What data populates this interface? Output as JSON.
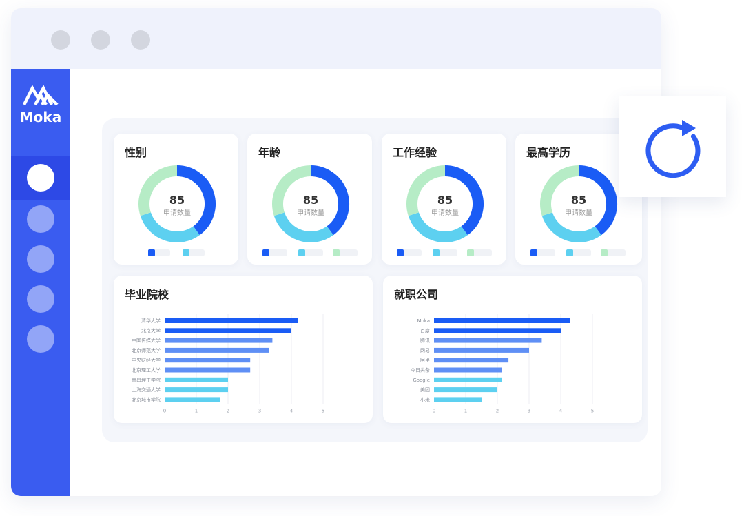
{
  "app": {
    "brand": "Moka"
  },
  "cards": [
    {
      "title": "性别",
      "value": "85",
      "label": "申请数量"
    },
    {
      "title": "年龄",
      "value": "85",
      "label": "申请数量"
    },
    {
      "title": "工作经验",
      "value": "85",
      "label": "申请数量"
    },
    {
      "title": "最高学历",
      "value": "85",
      "label": "申请数量"
    }
  ],
  "colors": {
    "accent": "#3a5cf0",
    "sidebar_active": "#2d49e6",
    "titlebar": "#eff2fc",
    "blue": "#1a5cf5",
    "mid_blue": "#5f8ff5",
    "cyan": "#5dd0f0",
    "green": "#b6ecc6"
  },
  "chart_data": [
    {
      "type": "pie",
      "subtype": "donut",
      "title": "性别",
      "values": [
        40,
        30,
        30
      ],
      "center_value": "85",
      "center_label": "申请数量"
    },
    {
      "type": "pie",
      "subtype": "donut",
      "title": "年龄",
      "values": [
        40,
        30,
        30
      ],
      "center_value": "85",
      "center_label": "申请数量"
    },
    {
      "type": "pie",
      "subtype": "donut",
      "title": "工作经验",
      "values": [
        40,
        30,
        30
      ],
      "center_value": "85",
      "center_label": "申请数量"
    },
    {
      "type": "pie",
      "subtype": "donut",
      "title": "最高学历",
      "values": [
        40,
        30,
        30
      ],
      "center_value": "85",
      "center_label": "申请数量"
    },
    {
      "type": "bar",
      "orientation": "horizontal",
      "title": "毕业院校",
      "categories": [
        "清华大学",
        "北京大学",
        "中国传媒大学",
        "北京师范大学",
        "中央财经大学",
        "北京理工大学",
        "南昌理工学院",
        "上海交通大学",
        "北京城市学院"
      ],
      "values": [
        4.2,
        4.0,
        3.4,
        3.3,
        2.7,
        2.7,
        2.0,
        2.0,
        1.75
      ],
      "xlim": [
        0,
        5
      ],
      "xticks": [
        "0",
        "1",
        "2",
        "3",
        "4",
        "5"
      ],
      "grid": true
    },
    {
      "type": "bar",
      "orientation": "horizontal",
      "title": "就职公司",
      "categories": [
        "Moka",
        "百度",
        "腾讯",
        "网易",
        "阿里",
        "今日头条",
        "Google",
        "美团",
        "小米"
      ],
      "values": [
        4.3,
        4.0,
        3.4,
        3.0,
        2.35,
        2.15,
        2.15,
        2.0,
        1.5
      ],
      "xlim": [
        0,
        5
      ],
      "xticks": [
        "0",
        "1",
        "2",
        "3",
        "4",
        "5"
      ],
      "grid": true
    }
  ]
}
